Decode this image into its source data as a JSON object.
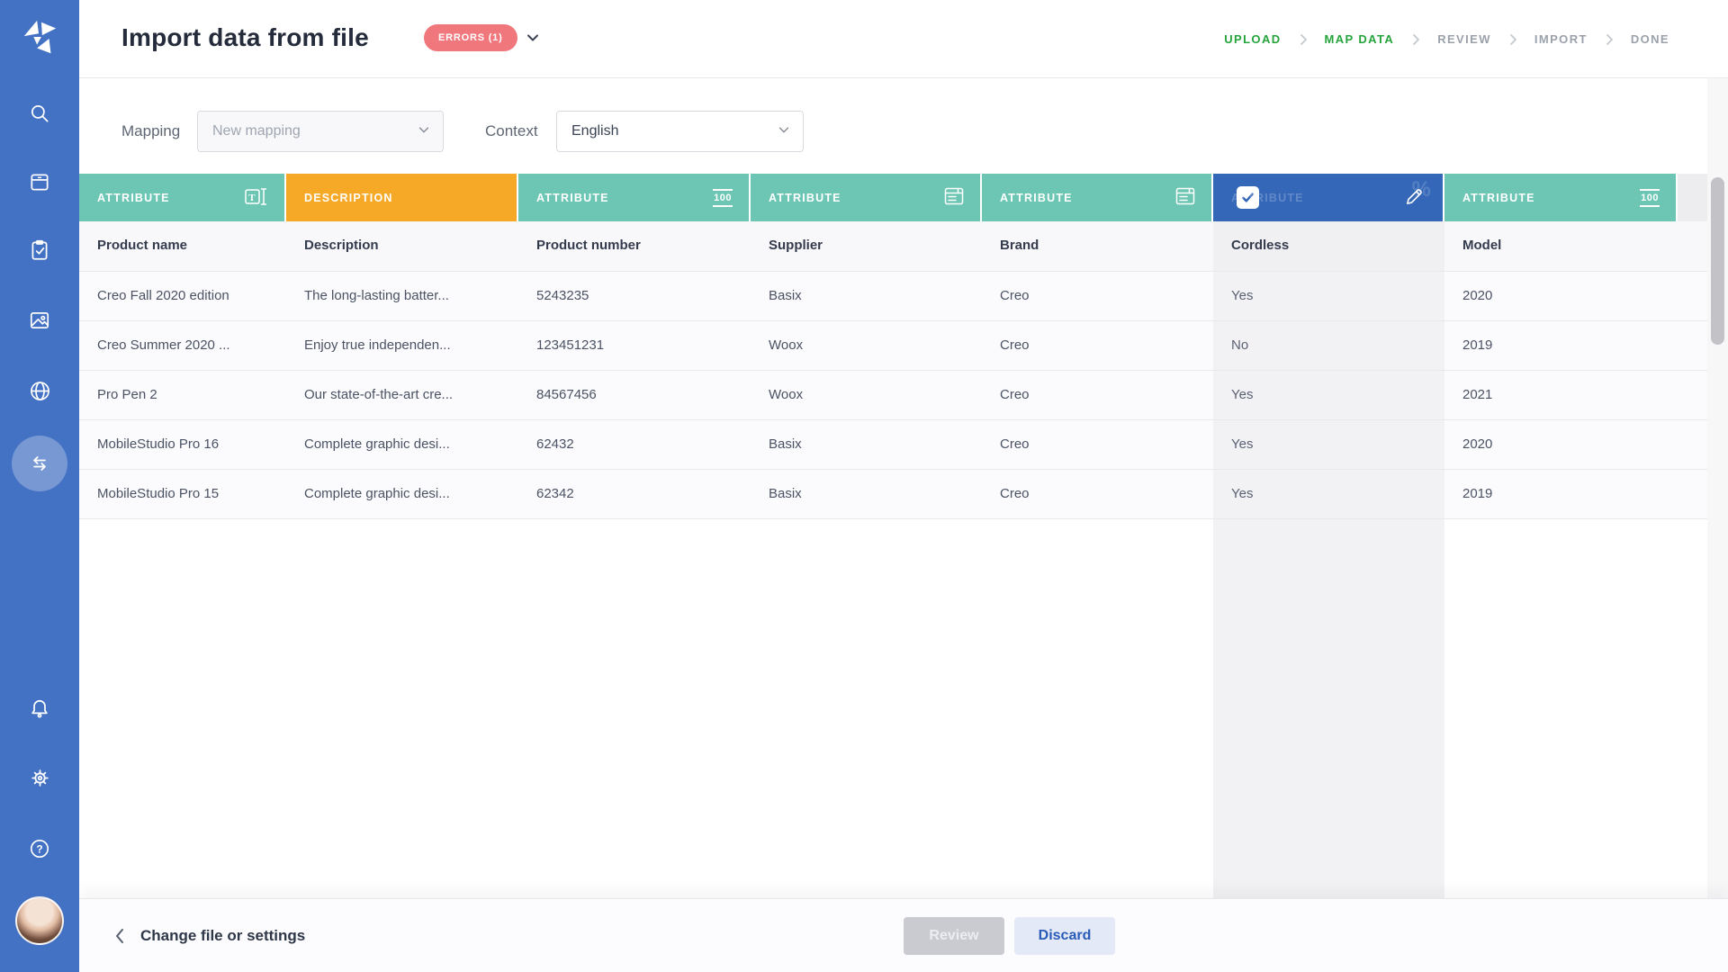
{
  "header": {
    "title": "Import data from file",
    "errors_badge": "ERRORS (1)",
    "steps": [
      {
        "label": "UPLOAD",
        "state": "done"
      },
      {
        "label": "MAP DATA",
        "state": "current"
      },
      {
        "label": "REVIEW",
        "state": "upcoming"
      },
      {
        "label": "IMPORT",
        "state": "upcoming"
      },
      {
        "label": "DONE",
        "state": "upcoming"
      }
    ]
  },
  "sidebar": {
    "items": [
      {
        "icon": "search-icon"
      },
      {
        "icon": "products-box-icon"
      },
      {
        "icon": "tasks-clipboard-icon"
      },
      {
        "icon": "media-image-icon"
      },
      {
        "icon": "globe-icon"
      },
      {
        "icon": "import-export-arrows-icon",
        "active": true
      },
      {
        "icon": "bell-icon"
      },
      {
        "icon": "gear-icon"
      },
      {
        "icon": "help-icon"
      },
      {
        "icon": "user-avatar"
      }
    ]
  },
  "toolbar": {
    "mapping_label": "Mapping",
    "mapping_placeholder": "New mapping",
    "context_label": "Context",
    "context_value": "English"
  },
  "table": {
    "columns": [
      {
        "label": "ATTRIBUTE",
        "field": "Product name",
        "type": "text",
        "color": "teal",
        "icon": "text-type-icon"
      },
      {
        "label": "DESCRIPTION",
        "field": "Description",
        "type": "description",
        "color": "orange",
        "icon": null
      },
      {
        "label": "ATTRIBUTE",
        "field": "Product number",
        "type": "number-100",
        "color": "teal",
        "icon": "number-100-icon"
      },
      {
        "label": "ATTRIBUTE",
        "field": "Supplier",
        "type": "list",
        "color": "teal",
        "icon": "list-icon"
      },
      {
        "label": "ATTRIBUTE",
        "field": "Brand",
        "type": "list",
        "color": "teal",
        "icon": "list-icon"
      },
      {
        "label": "ATTRIBUTE",
        "field": "Cordless",
        "type": "boolean",
        "color": "blue",
        "icon": "checkbox-icon pencil-icon percent-icon",
        "selected": true
      },
      {
        "label": "ATTRIBUTE",
        "field": "Model",
        "type": "number-100",
        "color": "teal",
        "icon": "number-100-icon"
      }
    ],
    "rows": [
      [
        "Creo Fall 2020 edition",
        "The long-lasting batter...",
        "5243235",
        "Basix",
        "Creo",
        "Yes",
        "2020"
      ],
      [
        "Creo Summer 2020 ...",
        "Enjoy true independen...",
        "123451231",
        "Woox",
        "Creo",
        "No",
        "2019"
      ],
      [
        "Pro Pen 2",
        "Our state-of-the-art cre...",
        "84567456",
        "Woox",
        "Creo",
        "Yes",
        "2021"
      ],
      [
        "MobileStudio Pro 16",
        "Complete graphic desi...",
        "62432",
        "Basix",
        "Creo",
        "Yes",
        "2020"
      ],
      [
        "MobileStudio Pro 15",
        "Complete graphic desi...",
        "62342",
        "Basix",
        "Creo",
        "Yes",
        "2019"
      ]
    ]
  },
  "footer": {
    "back_label": "Change file or settings",
    "review_label": "Review",
    "discard_label": "Discard"
  },
  "colors": {
    "sidebar": "#4371C3",
    "teal": "#6CC6B3",
    "orange": "#F5A927",
    "selected_blue": "#3467B8",
    "error": "#F0787D",
    "step_green": "#25A43C"
  }
}
